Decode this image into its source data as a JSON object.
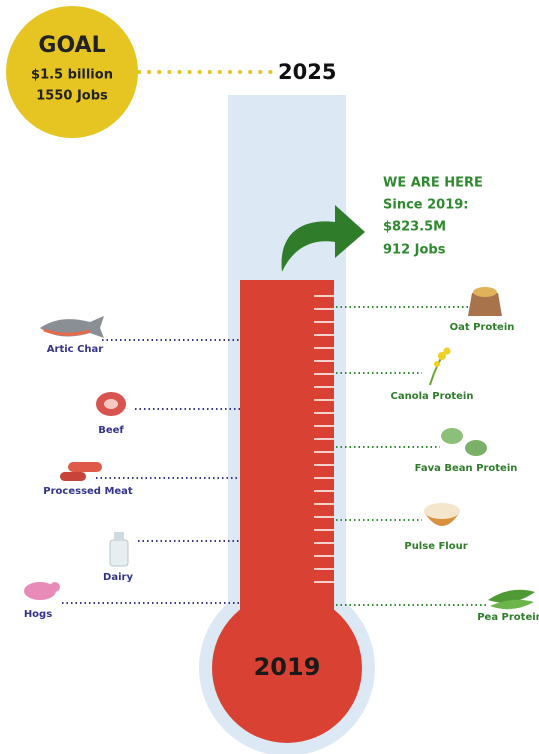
{
  "goal": {
    "heading": "GOAL",
    "amount": "$1.5 billion",
    "jobs": "1550 Jobs"
  },
  "target_year": "2025",
  "status": [
    "WE ARE HERE",
    "Since 2019:",
    "$823.5M",
    "912 Jobs"
  ],
  "current_year": "2019",
  "left_items": [
    "Artic Char",
    "Beef",
    "Processed Meat",
    "Dairy",
    "Hogs"
  ],
  "right_items": [
    "Oat Protein",
    "Canola Protein",
    "Fava Bean Protein",
    "Pulse Flour",
    "Pea Protein"
  ]
}
